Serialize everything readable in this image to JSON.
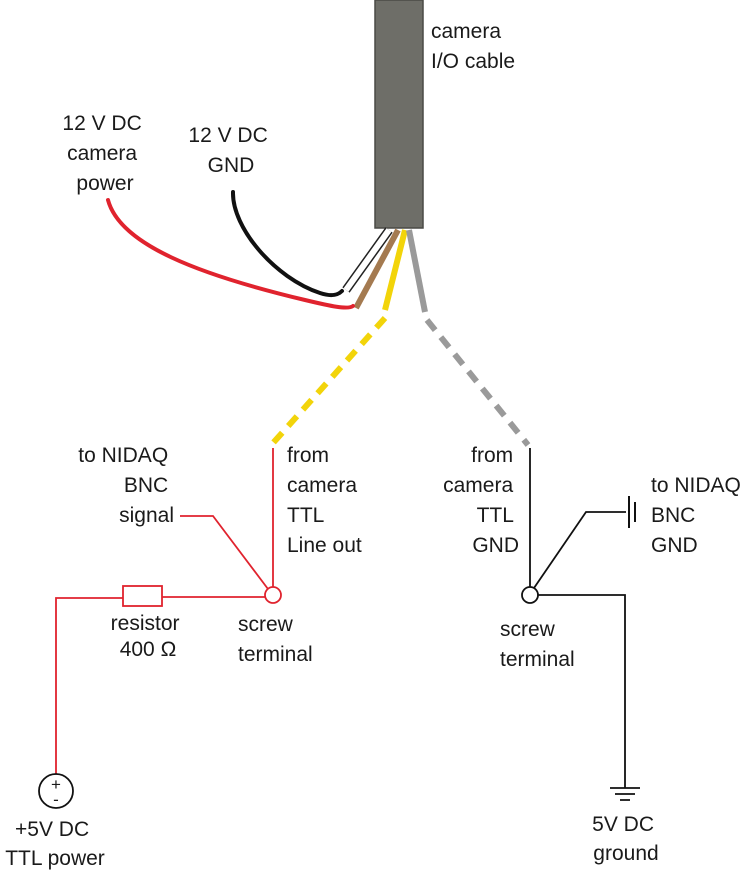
{
  "labels": {
    "camera_cable": [
      "camera",
      "I/O cable"
    ],
    "power_12v": [
      "12 V DC",
      "camera",
      "power"
    ],
    "gnd_12v": [
      "12 V DC",
      "GND"
    ],
    "to_nidaq_signal": [
      "to NIDAQ",
      "BNC",
      "signal"
    ],
    "from_camera_ttl_out": [
      "from",
      "camera",
      "TTL",
      "Line out"
    ],
    "from_camera_ttl_gnd": [
      "from",
      "camera",
      "TTL",
      "GND"
    ],
    "to_nidaq_gnd": [
      "to NIDAQ",
      "BNC",
      "GND"
    ],
    "resistor": [
      "resistor",
      "400 Ω"
    ],
    "screw_terminal_left": [
      "screw",
      "terminal"
    ],
    "screw_terminal_right": [
      "screw",
      "terminal"
    ],
    "ttl_power": [
      "+5V DC",
      "TTL power"
    ],
    "ground_5v": [
      "5V DC",
      "ground"
    ],
    "source_plus": "+",
    "source_minus": "-"
  },
  "colors": {
    "cable_body": "#6e6e68",
    "power_wire": "#e0232e",
    "gnd_wire": "#111111",
    "brown_wire": "#a47a50",
    "yellow_wire": "#f2d40a",
    "gray_wire": "#9a9a9a",
    "ttl_circuit": "#e0232e",
    "gnd_circuit": "#111111"
  }
}
